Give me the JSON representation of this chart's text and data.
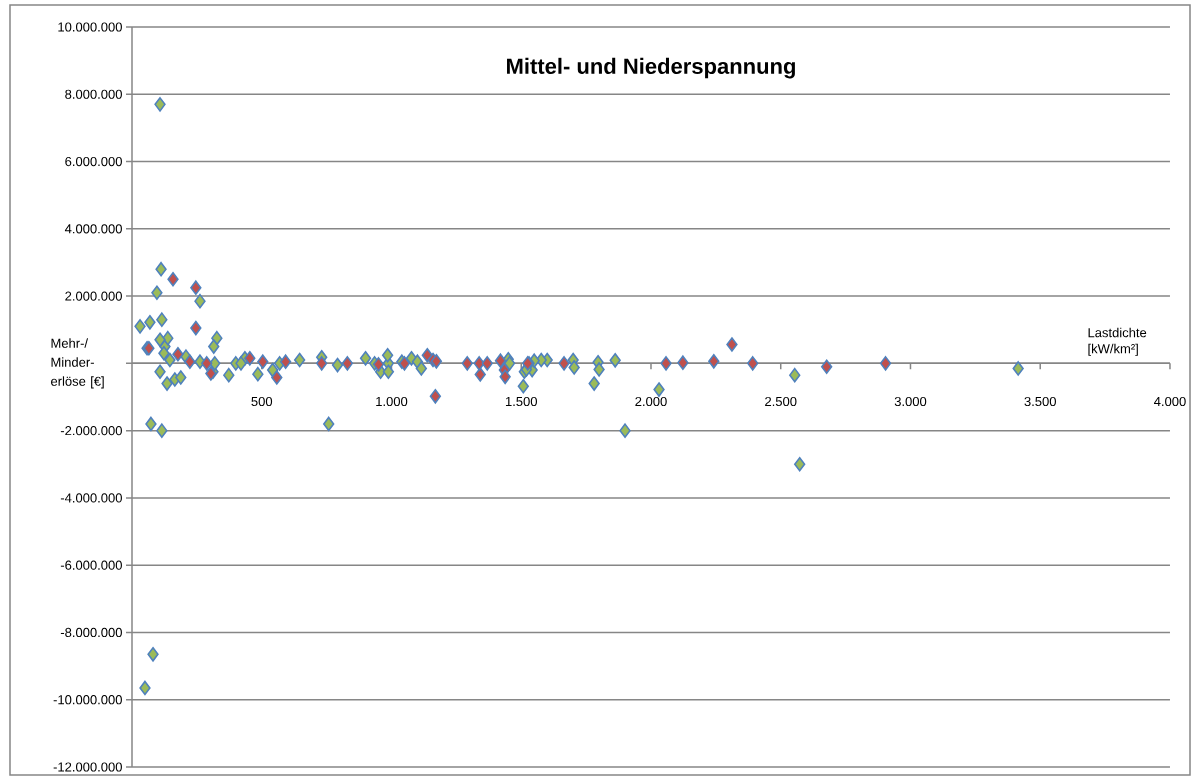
{
  "chart_data": {
    "type": "scatter",
    "title": "Mittel- und Niederspannung",
    "xlabel": "Lastdichte [kW/km²]",
    "ylabel": "Mehr-/ Minder-erlöse [€]",
    "xlim": [
      0,
      4000
    ],
    "ylim": [
      -12000000,
      10000000
    ],
    "xticks": [
      {
        "value": 500,
        "label": "500"
      },
      {
        "value": 1000,
        "label": "1.000"
      },
      {
        "value": 1500,
        "label": "1.500"
      },
      {
        "value": 2000,
        "label": "2.000"
      },
      {
        "value": 2500,
        "label": "2.500"
      },
      {
        "value": 3000,
        "label": "3.000"
      },
      {
        "value": 3500,
        "label": "3.500"
      },
      {
        "value": 4000,
        "label": "4.000"
      }
    ],
    "yticks": [
      {
        "value": -12000000,
        "label": "-12.000.000"
      },
      {
        "value": -10000000,
        "label": "-10.000.000"
      },
      {
        "value": -8000000,
        "label": "-8.000.000"
      },
      {
        "value": -6000000,
        "label": "-6.000.000"
      },
      {
        "value": -4000000,
        "label": "-4.000.000"
      },
      {
        "value": -2000000,
        "label": "-2.000.000"
      },
      {
        "value": 0,
        "label": null
      },
      {
        "value": 2000000,
        "label": "2.000.000"
      },
      {
        "value": 4000000,
        "label": "4.000.000"
      },
      {
        "value": 6000000,
        "label": "6.000.000"
      },
      {
        "value": 8000000,
        "label": "8.000.000"
      },
      {
        "value": 10000000,
        "label": "10.000.000"
      }
    ],
    "grid": "y",
    "marker": "diamond",
    "series": [
      {
        "color": "#9bbb59",
        "x": [
          31,
          69,
          58,
          96,
          112,
          108,
          115,
          73,
          115,
          81,
          50,
          262,
          327,
          315,
          127,
          138,
          108,
          123,
          146,
          108,
          135,
          165,
          188,
          312,
          542,
          373,
          485,
          758,
          958,
          1508,
          1512,
          1542,
          1781,
          1900,
          2031,
          2554,
          2573,
          3415,
          1862,
          1796,
          1800,
          1700,
          1704,
          1600,
          1577,
          1550,
          1530,
          1520,
          1450,
          1455,
          1077,
          1100,
          1115,
          1040,
          208,
          262,
          319,
          400,
          435,
          420,
          569,
          646,
          731,
          792,
          900,
          935,
          988,
          985,
          988
        ],
        "values": [
          1100000,
          1220000,
          450000,
          2100000,
          2800000,
          7700000,
          1300000,
          -1800000,
          -2000000,
          -8650000,
          -9650000,
          1850000,
          750000,
          500000,
          500000,
          750000,
          700000,
          300000,
          100000,
          -250000,
          -600000,
          -480000,
          -420000,
          -250000,
          -200000,
          -350000,
          -320000,
          -1800000,
          -250000,
          -680000,
          -250000,
          -200000,
          -600000,
          -2000000,
          -780000,
          -350000,
          -3000000,
          -150000,
          90000,
          30000,
          -180000,
          100000,
          -120000,
          100000,
          100000,
          80000,
          0,
          -180000,
          120000,
          0,
          150000,
          50000,
          -150000,
          50000,
          200000,
          50000,
          0,
          0,
          150000,
          0,
          0,
          100000,
          180000,
          -50000,
          150000,
          0,
          0,
          240000,
          -250000
        ]
      },
      {
        "color": "#c0504d",
        "x": [
          246,
          158,
          246,
          304,
          558,
          1169,
          1342,
          1435,
          1438,
          2312,
          2904,
          2677,
          2392,
          2242,
          2123,
          2058,
          1665,
          1525,
          1338,
          1369,
          1292,
          1138,
          1160,
          1050,
          1173,
          65,
          177,
          223,
          288,
          454,
          504,
          592,
          731,
          950,
          830,
          1420
        ],
        "values": [
          2250000,
          2500000,
          1050000,
          -300000,
          -420000,
          -980000,
          -330000,
          -200000,
          -400000,
          560000,
          0,
          -100000,
          0,
          60000,
          20000,
          0,
          0,
          0,
          0,
          0,
          0,
          240000,
          100000,
          0,
          60000,
          450000,
          270000,
          50000,
          0,
          150000,
          50000,
          50000,
          0,
          -30000,
          0,
          80000
        ]
      }
    ]
  }
}
